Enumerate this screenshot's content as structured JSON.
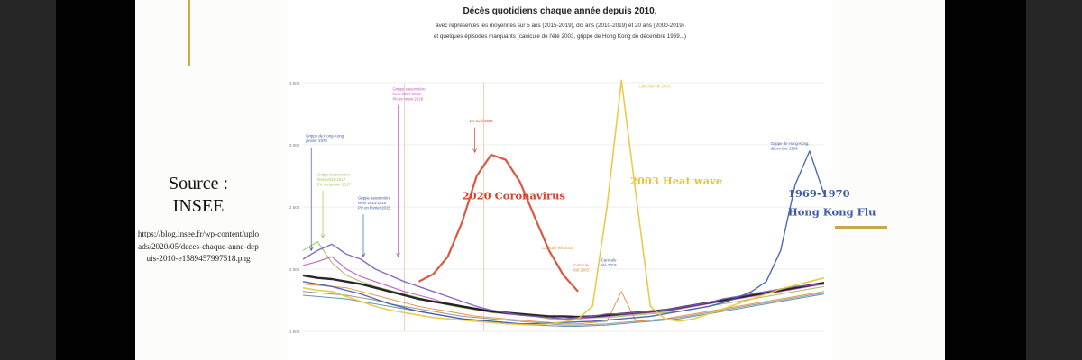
{
  "slide": {
    "source_title": "Source :\nINSEE",
    "source_url": "https://blog.insee.fr/wp-content/uploads/2020/05/deces-chaque-anne-depuis-2010-e1589457997518.png"
  },
  "colors": {
    "gold": "#c9a64a",
    "covid": "#d9442a",
    "heatwave": "#e8c43a",
    "hongkong": "#3c5aa6",
    "purple": "#7b5bb7",
    "black": "#111111",
    "magenta": "#c44fbf",
    "green": "#9bbf5a",
    "orange": "#e2893b",
    "gray": "#8c8c8c",
    "teal": "#4a8da6"
  },
  "chart_data": {
    "type": "line",
    "title": "Décès quotidiens chaque année depuis 2010,",
    "subtitle_lines": [
      "avec représentés les moyennes sur 5 ans (2015-2019), dix ans (2010-2019) et 20 ans (2000-2019)",
      "et quelques épisodes marquants (canicule de l'été 2003, grippe de Hong Kong de décembre 1969...)"
    ],
    "y_ticks": [
      "3 500",
      "3 000",
      "2 500",
      "2 000",
      "1 500"
    ],
    "ylim": [
      1500,
      3500
    ],
    "x": [
      0,
      10,
      20,
      30,
      40,
      50,
      60,
      70,
      80,
      90,
      100,
      110,
      120,
      130,
      140,
      150,
      160,
      170,
      180,
      190,
      200,
      210,
      220,
      230,
      240,
      250,
      260,
      270,
      280,
      290,
      300,
      310,
      320,
      330,
      340,
      350,
      360
    ],
    "series": [
      {
        "name": "",
        "color_key": "covid",
        "width": 2.2,
        "values": [
          null,
          null,
          null,
          null,
          null,
          null,
          null,
          null,
          1900,
          1960,
          2100,
          2380,
          2750,
          2920,
          2880,
          2700,
          2420,
          2150,
          1950,
          1820,
          null,
          null,
          null,
          null,
          null,
          null,
          null,
          null,
          null,
          null,
          null,
          null,
          null,
          null,
          null,
          null,
          null
        ]
      },
      {
        "name": "",
        "color_key": "heatwave",
        "width": 1.6,
        "values": [
          1850,
          1830,
          1820,
          1780,
          1740,
          1700,
          1670,
          1650,
          1630,
          1610,
          1600,
          1590,
          1580,
          1570,
          1560,
          1555,
          1550,
          1560,
          1575,
          1600,
          1700,
          2500,
          3520,
          2600,
          1700,
          1600,
          1580,
          1600,
          1640,
          1680,
          1720,
          1760,
          1800,
          1840,
          1870,
          1900,
          1930
        ]
      },
      {
        "name": "",
        "color_key": "hongkong",
        "width": 1.4,
        "values": [
          1900,
          1880,
          1860,
          1830,
          1800,
          1760,
          1720,
          1690,
          1660,
          1640,
          1620,
          1600,
          1590,
          1580,
          1570,
          1560,
          1560,
          1565,
          1570,
          1575,
          1580,
          1590,
          1600,
          1610,
          1620,
          1640,
          1660,
          1680,
          1700,
          1730,
          1770,
          1820,
          1900,
          2150,
          2680,
          2950,
          2600
        ]
      },
      {
        "name": "",
        "color_key": "purple",
        "width": 1.4,
        "values": [
          2080,
          2150,
          2200,
          2120,
          2080,
          2000,
          1950,
          1900,
          1860,
          1820,
          1780,
          1740,
          1700,
          1670,
          1650,
          1630,
          1620,
          1610,
          1600,
          1610,
          1620,
          1640,
          1640,
          1650,
          1660,
          1670,
          1690,
          1710,
          1730,
          1760,
          1780,
          1800,
          1820,
          1840,
          1860,
          1870,
          1880
        ]
      },
      {
        "name": "",
        "color_key": "black",
        "width": 2.4,
        "values": [
          1950,
          1930,
          1920,
          1900,
          1880,
          1850,
          1820,
          1790,
          1760,
          1740,
          1720,
          1700,
          1680,
          1660,
          1650,
          1640,
          1630,
          1620,
          1620,
          1615,
          1620,
          1630,
          1640,
          1650,
          1660,
          1670,
          1690,
          1710,
          1730,
          1750,
          1770,
          1790,
          1810,
          1830,
          1850,
          1870,
          1890
        ]
      },
      {
        "name": "",
        "color_key": "magenta",
        "width": 1.1,
        "values": [
          2030,
          2060,
          2100,
          2000,
          1940,
          1900,
          1860,
          1820,
          1790,
          1760,
          1720,
          1700,
          1680,
          1660,
          1640,
          1630,
          1620,
          1610,
          1600,
          1600,
          1610,
          1620,
          1630,
          1640,
          1650,
          1660,
          1680,
          1700,
          1720,
          1740,
          1760,
          1780,
          1800,
          1820,
          1840,
          1860,
          1880
        ]
      },
      {
        "name": "",
        "color_key": "green",
        "width": 1.1,
        "values": [
          2150,
          2220,
          2050,
          1950,
          1900,
          1860,
          1830,
          1800,
          1770,
          1740,
          1710,
          1690,
          1670,
          1650,
          1640,
          1630,
          1620,
          1600,
          1590,
          1600,
          1610,
          1610,
          1620,
          1630,
          1640,
          1650,
          1660,
          1680,
          1700,
          1720,
          1740,
          1760,
          1780,
          1800,
          1820,
          1840,
          1860
        ]
      },
      {
        "name": "",
        "color_key": "orange",
        "width": 1.0,
        "values": [
          1880,
          1870,
          1860,
          1850,
          1820,
          1790,
          1760,
          1730,
          1700,
          1680,
          1660,
          1640,
          1620,
          1610,
          1600,
          1590,
          1580,
          1570,
          1560,
          1560,
          1570,
          1580,
          1820,
          1580,
          1590,
          1600,
          1620,
          1640,
          1660,
          1680,
          1700,
          1720,
          1740,
          1760,
          1780,
          1800,
          1820
        ]
      },
      {
        "name": "",
        "color_key": "gray",
        "width": 1.0,
        "values": [
          1820,
          1810,
          1800,
          1790,
          1770,
          1750,
          1720,
          1700,
          1680,
          1660,
          1640,
          1620,
          1610,
          1600,
          1590,
          1580,
          1570,
          1560,
          1550,
          1550,
          1555,
          1560,
          1570,
          1580,
          1590,
          1600,
          1610,
          1630,
          1650,
          1670,
          1690,
          1710,
          1730,
          1750,
          1770,
          1790,
          1810
        ]
      },
      {
        "name": "",
        "color_key": "teal",
        "width": 1.0,
        "values": [
          1790,
          1780,
          1770,
          1760,
          1740,
          1720,
          1700,
          1680,
          1660,
          1640,
          1620,
          1600,
          1590,
          1580,
          1570,
          1560,
          1550,
          1545,
          1540,
          1540,
          1545,
          1550,
          1560,
          1570,
          1580,
          1590,
          1600,
          1620,
          1640,
          1660,
          1680,
          1700,
          1720,
          1740,
          1760,
          1780,
          1800
        ]
      }
    ],
    "vlines_x": [
      70,
      125
    ],
    "annotations_small": [
      {
        "text": "Grippe de Hong-Kong,\njanvier 1970",
        "color_key": "hongkong",
        "x": 2,
        "y": 3060,
        "arrow_to_y": 2150
      },
      {
        "text": "Grippe saisonnière\nhiver 2016-2017\nPic en janvier 2017",
        "color_key": "green",
        "x": 10,
        "y": 2750,
        "arrow_to_y": 2250
      },
      {
        "text": "Grippe saisonnière\nhiver 2014-2015\nPic en février 2015",
        "color_key": "hongkong",
        "x": 38,
        "y": 2560,
        "arrow_to_y": 2100
      },
      {
        "text": "Grippe saisonnière\nhiver 2017-2018\nPic en mars 2018",
        "color_key": "magenta",
        "x": 62,
        "y": 3440,
        "arrow_to_y": 2100
      },
      {
        "text": "1er avril 2020",
        "color_key": "covid",
        "x": 115,
        "y": 3180,
        "arrow_to_y": 2940
      },
      {
        "text": "Canicule été 2003",
        "color_key": "heatwave",
        "x": 232,
        "y": 3460,
        "arrow_to_y": null
      },
      {
        "text": "Canicule été 2015",
        "color_key": "orange",
        "x": 165,
        "y": 2160,
        "arrow_to_y": null
      },
      {
        "text": "Canicule\nété 2003",
        "color_key": "orange",
        "x": 187,
        "y": 2020,
        "arrow_to_y": null
      },
      {
        "text": "Canicule\nété 2019",
        "color_key": "hongkong",
        "x": 206,
        "y": 2060,
        "arrow_to_y": null
      },
      {
        "text": "Grippe de Hong-Kong,\ndécembre 1969",
        "color_key": "hongkong",
        "x": 323,
        "y": 3000,
        "arrow_to_y": null
      }
    ],
    "overlays": [
      {
        "text": "2020 Coronavirus",
        "color_key": "covid",
        "x": 110,
        "y": 2560
      },
      {
        "text": "2003 Heat wave",
        "color_key": "heatwave",
        "x": 226,
        "y": 2680
      },
      {
        "text": "1969-1970",
        "color_key": "hongkong",
        "x": 335,
        "y": 2580
      },
      {
        "text": "Hong Kong Flu",
        "color_key": "hongkong",
        "x": 335,
        "y": 2430
      }
    ]
  }
}
